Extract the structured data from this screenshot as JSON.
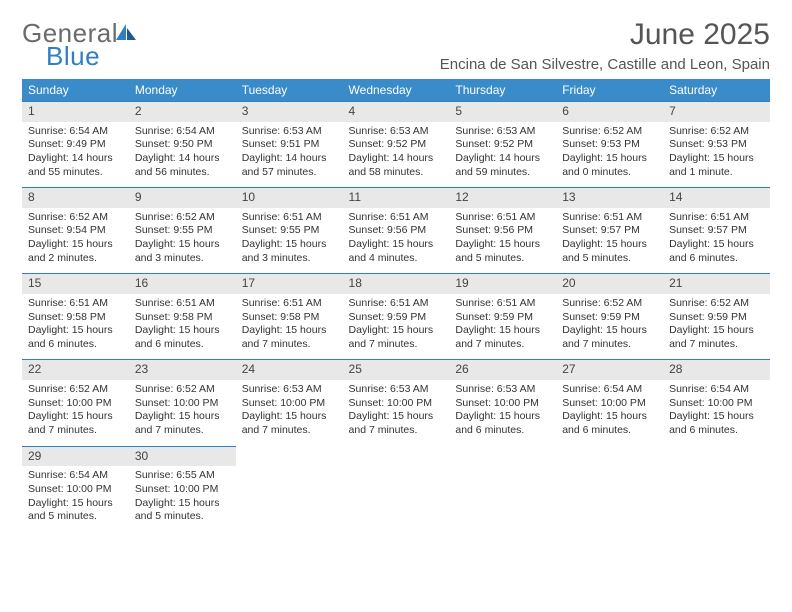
{
  "brand": {
    "general": "General",
    "blue": "Blue"
  },
  "title": "June 2025",
  "location": "Encina de San Silvestre, Castille and Leon, Spain",
  "colors": {
    "header_bg": "#3a8bc9",
    "accent": "#2f7fc2",
    "daynum_bg": "#e8e8e8"
  },
  "weekdays": [
    "Sunday",
    "Monday",
    "Tuesday",
    "Wednesday",
    "Thursday",
    "Friday",
    "Saturday"
  ],
  "days": [
    {
      "n": "1",
      "sr": "6:54 AM",
      "ss": "9:49 PM",
      "dl": "14 hours and 55 minutes."
    },
    {
      "n": "2",
      "sr": "6:54 AM",
      "ss": "9:50 PM",
      "dl": "14 hours and 56 minutes."
    },
    {
      "n": "3",
      "sr": "6:53 AM",
      "ss": "9:51 PM",
      "dl": "14 hours and 57 minutes."
    },
    {
      "n": "4",
      "sr": "6:53 AM",
      "ss": "9:52 PM",
      "dl": "14 hours and 58 minutes."
    },
    {
      "n": "5",
      "sr": "6:53 AM",
      "ss": "9:52 PM",
      "dl": "14 hours and 59 minutes."
    },
    {
      "n": "6",
      "sr": "6:52 AM",
      "ss": "9:53 PM",
      "dl": "15 hours and 0 minutes."
    },
    {
      "n": "7",
      "sr": "6:52 AM",
      "ss": "9:53 PM",
      "dl": "15 hours and 1 minute."
    },
    {
      "n": "8",
      "sr": "6:52 AM",
      "ss": "9:54 PM",
      "dl": "15 hours and 2 minutes."
    },
    {
      "n": "9",
      "sr": "6:52 AM",
      "ss": "9:55 PM",
      "dl": "15 hours and 3 minutes."
    },
    {
      "n": "10",
      "sr": "6:51 AM",
      "ss": "9:55 PM",
      "dl": "15 hours and 3 minutes."
    },
    {
      "n": "11",
      "sr": "6:51 AM",
      "ss": "9:56 PM",
      "dl": "15 hours and 4 minutes."
    },
    {
      "n": "12",
      "sr": "6:51 AM",
      "ss": "9:56 PM",
      "dl": "15 hours and 5 minutes."
    },
    {
      "n": "13",
      "sr": "6:51 AM",
      "ss": "9:57 PM",
      "dl": "15 hours and 5 minutes."
    },
    {
      "n": "14",
      "sr": "6:51 AM",
      "ss": "9:57 PM",
      "dl": "15 hours and 6 minutes."
    },
    {
      "n": "15",
      "sr": "6:51 AM",
      "ss": "9:58 PM",
      "dl": "15 hours and 6 minutes."
    },
    {
      "n": "16",
      "sr": "6:51 AM",
      "ss": "9:58 PM",
      "dl": "15 hours and 6 minutes."
    },
    {
      "n": "17",
      "sr": "6:51 AM",
      "ss": "9:58 PM",
      "dl": "15 hours and 7 minutes."
    },
    {
      "n": "18",
      "sr": "6:51 AM",
      "ss": "9:59 PM",
      "dl": "15 hours and 7 minutes."
    },
    {
      "n": "19",
      "sr": "6:51 AM",
      "ss": "9:59 PM",
      "dl": "15 hours and 7 minutes."
    },
    {
      "n": "20",
      "sr": "6:52 AM",
      "ss": "9:59 PM",
      "dl": "15 hours and 7 minutes."
    },
    {
      "n": "21",
      "sr": "6:52 AM",
      "ss": "9:59 PM",
      "dl": "15 hours and 7 minutes."
    },
    {
      "n": "22",
      "sr": "6:52 AM",
      "ss": "10:00 PM",
      "dl": "15 hours and 7 minutes."
    },
    {
      "n": "23",
      "sr": "6:52 AM",
      "ss": "10:00 PM",
      "dl": "15 hours and 7 minutes."
    },
    {
      "n": "24",
      "sr": "6:53 AM",
      "ss": "10:00 PM",
      "dl": "15 hours and 7 minutes."
    },
    {
      "n": "25",
      "sr": "6:53 AM",
      "ss": "10:00 PM",
      "dl": "15 hours and 7 minutes."
    },
    {
      "n": "26",
      "sr": "6:53 AM",
      "ss": "10:00 PM",
      "dl": "15 hours and 6 minutes."
    },
    {
      "n": "27",
      "sr": "6:54 AM",
      "ss": "10:00 PM",
      "dl": "15 hours and 6 minutes."
    },
    {
      "n": "28",
      "sr": "6:54 AM",
      "ss": "10:00 PM",
      "dl": "15 hours and 6 minutes."
    },
    {
      "n": "29",
      "sr": "6:54 AM",
      "ss": "10:00 PM",
      "dl": "15 hours and 5 minutes."
    },
    {
      "n": "30",
      "sr": "6:55 AM",
      "ss": "10:00 PM",
      "dl": "15 hours and 5 minutes."
    }
  ],
  "labels": {
    "sunrise": "Sunrise:",
    "sunset": "Sunset:",
    "daylight": "Daylight:"
  }
}
